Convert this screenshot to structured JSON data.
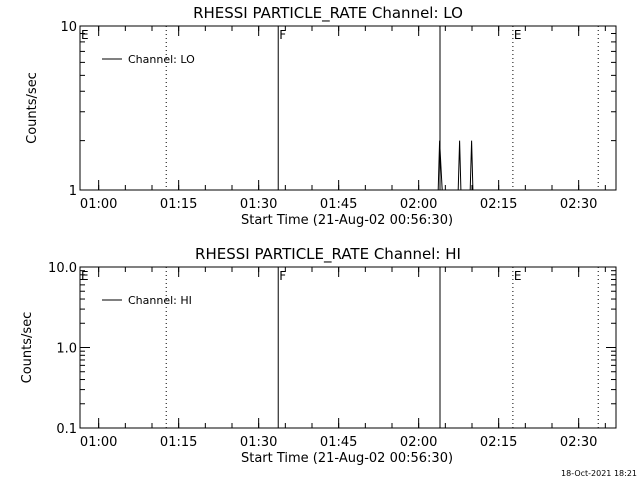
{
  "chart_data": [
    {
      "type": "line",
      "title": "RHESSI PARTICLE_RATE Channel: LO",
      "xlabel": "Start Time (21-Aug-02 00:56:30)",
      "ylabel": "Counts/sec",
      "yscale": "log",
      "xlim": [
        "00:56:30",
        "02:37:00"
      ],
      "ylim": [
        1,
        10
      ],
      "x_ticks": [
        "01:00",
        "01:15",
        "01:30",
        "01:45",
        "02:00",
        "02:15",
        "02:30"
      ],
      "y_ticks": [
        "1",
        "10"
      ],
      "legend": {
        "position": "top-left",
        "entries": [
          "Channel: LO"
        ]
      },
      "series": [
        {
          "name": "Channel: LO",
          "x": [
            "02:03:40",
            "02:03:55",
            "02:04:10",
            "02:04:25",
            "02:07:25",
            "02:07:40",
            "02:07:55",
            "02:09:40",
            "02:09:55",
            "02:10:10"
          ],
          "values": [
            1,
            2,
            1.4,
            1,
            1,
            2,
            1,
            1,
            2,
            1
          ]
        }
      ],
      "event_lines": [
        {
          "time": "00:56:30",
          "style": "solid",
          "label": "E"
        },
        {
          "time": "01:12:40",
          "style": "dotted",
          "label": ""
        },
        {
          "time": "01:33:40",
          "style": "solid",
          "label": "F"
        },
        {
          "time": "02:04:00",
          "style": "solid",
          "label": ""
        },
        {
          "time": "02:17:40",
          "style": "dotted",
          "label": "E"
        },
        {
          "time": "02:33:40",
          "style": "dotted",
          "label": ""
        }
      ]
    },
    {
      "type": "line",
      "title": "RHESSI PARTICLE_RATE Channel: HI",
      "xlabel": "Start Time (21-Aug-02 00:56:30)",
      "ylabel": "Counts/sec",
      "yscale": "log",
      "xlim": [
        "00:56:30",
        "02:37:00"
      ],
      "ylim": [
        0.1,
        10
      ],
      "x_ticks": [
        "01:00",
        "01:15",
        "01:30",
        "01:45",
        "02:00",
        "02:15",
        "02:30"
      ],
      "y_ticks": [
        "0.1",
        "1.0",
        "10.0"
      ],
      "legend": {
        "position": "top-left",
        "entries": [
          "Channel: HI"
        ]
      },
      "series": [
        {
          "name": "Channel: HI",
          "x": [],
          "values": []
        }
      ],
      "event_lines": [
        {
          "time": "00:56:30",
          "style": "solid",
          "label": "E"
        },
        {
          "time": "01:12:40",
          "style": "dotted",
          "label": ""
        },
        {
          "time": "01:33:40",
          "style": "solid",
          "label": "F"
        },
        {
          "time": "02:04:00",
          "style": "solid",
          "label": ""
        },
        {
          "time": "02:17:40",
          "style": "dotted",
          "label": "E"
        },
        {
          "time": "02:33:40",
          "style": "dotted",
          "label": ""
        }
      ]
    }
  ],
  "footer": {
    "timestamp": "18-Oct-2021 18:21"
  }
}
